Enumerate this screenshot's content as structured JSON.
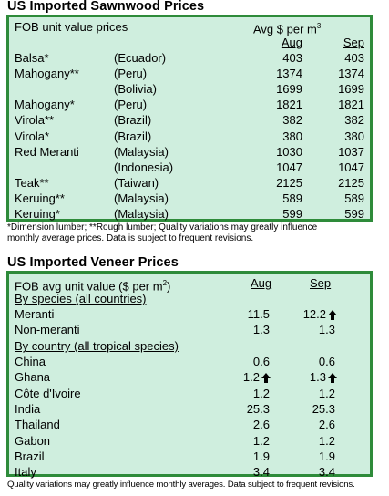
{
  "sawnwood": {
    "title": "US Imported Sawnwood Prices",
    "header": {
      "label": "FOB unit value prices",
      "unit": "Avg $ per m",
      "unit_sup": "3",
      "col_aug": "Aug",
      "col_sep": "Sep"
    },
    "rows": [
      {
        "species": "Balsa*",
        "origin": "(Ecuador)",
        "aug": "403",
        "sep": "403"
      },
      {
        "species": "Mahogany**",
        "origin": "(Peru)",
        "aug": "1374",
        "sep": "1374"
      },
      {
        "species": "",
        "origin": "(Bolivia)",
        "aug": "1699",
        "sep": "1699"
      },
      {
        "species": "Mahogany*",
        "origin": "(Peru)",
        "aug": "1821",
        "sep": "1821"
      },
      {
        "species": "Virola**",
        "origin": "(Brazil)",
        "aug": "382",
        "sep": "382"
      },
      {
        "species": "Virola*",
        "origin": "(Brazil)",
        "aug": "380",
        "sep": "380"
      },
      {
        "species": "Red Meranti",
        "origin": "(Malaysia)",
        "aug": "1030",
        "sep": "1037"
      },
      {
        "species": "",
        "origin": "(Indonesia)",
        "aug": "1047",
        "sep": "1047"
      },
      {
        "species": "Teak**",
        "origin": "(Taiwan)",
        "aug": "2125",
        "sep": "2125"
      },
      {
        "species": "Keruing**",
        "origin": "(Malaysia)",
        "aug": "589",
        "sep": "589"
      },
      {
        "species": "Keruing*",
        "origin": "(Malaysia)",
        "aug": "599",
        "sep": "599"
      }
    ],
    "footnote_line1": "*Dimension lumber; **Rough lumber; Quality variations may greatly influence",
    "footnote_line2": "monthly average prices. Data is subject to frequent revisions."
  },
  "veneer": {
    "title": "US Imported Veneer Prices",
    "header": {
      "label": "FOB avg unit value ($ per m",
      "label_sup": "2",
      "label_close": ")",
      "col_aug": "Aug",
      "col_sep": "Sep"
    },
    "section_species": "By species (all countries)",
    "section_country": "By country (all tropical species)",
    "species_rows": [
      {
        "name": "Meranti",
        "aug": "11.5",
        "sep": "12.2",
        "aug_up": false,
        "sep_up": true
      },
      {
        "name": "Non-meranti",
        "aug": "1.3",
        "sep": "1.3",
        "aug_up": false,
        "sep_up": false
      }
    ],
    "country_rows": [
      {
        "name": "China",
        "aug": "0.6",
        "sep": "0.6",
        "aug_up": false,
        "sep_up": false
      },
      {
        "name": "Ghana",
        "aug": "1.2",
        "sep": "1.3",
        "aug_up": true,
        "sep_up": true
      },
      {
        "name": "Côte d'Ivoire",
        "aug": "1.2",
        "sep": "1.2",
        "aug_up": false,
        "sep_up": false
      },
      {
        "name": "India",
        "aug": "25.3",
        "sep": "25.3",
        "aug_up": false,
        "sep_up": false
      },
      {
        "name": "Thailand",
        "aug": "2.6",
        "sep": "2.6",
        "aug_up": false,
        "sep_up": false
      },
      {
        "name": "Gabon",
        "aug": "1.2",
        "sep": "1.2",
        "aug_up": false,
        "sep_up": false
      },
      {
        "name": "Brazil",
        "aug": "1.9",
        "sep": "1.9",
        "aug_up": false,
        "sep_up": false
      },
      {
        "name": "Italy",
        "aug": "3.4",
        "sep": "3.4",
        "aug_up": false,
        "sep_up": false
      }
    ],
    "footnote": "Quality variations may greatly influence monthly averages. Data subject to frequent revisions."
  },
  "colors": {
    "panel_bg": "#cfeede",
    "border": "#2e8b3a"
  }
}
